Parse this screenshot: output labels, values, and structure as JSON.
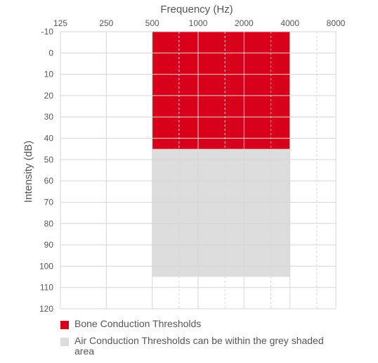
{
  "chart_data": {
    "type": "area",
    "xlabel": "Frequency (Hz)",
    "ylabel": "Intensity (dB)",
    "x_scale": "log2",
    "x_ticks": [
      125,
      250,
      500,
      1000,
      2000,
      4000,
      8000
    ],
    "y_ticks": [
      -10,
      0,
      10,
      20,
      30,
      40,
      50,
      60,
      70,
      80,
      90,
      100,
      110,
      120
    ],
    "ylim": [
      -10,
      120
    ],
    "y_inverted": true,
    "grid": true,
    "grid_minor_x_dashed": [
      750,
      1500,
      3000,
      6000
    ],
    "legend_position": "bottom",
    "series": [
      {
        "name": "Air Conduction Thresholds can be within the grey shaded area",
        "x_range": [
          500,
          4000
        ],
        "y_range": [
          -10,
          105
        ],
        "color": "#dcdcdc"
      },
      {
        "name": "Bone Conduction Thresholds",
        "x_range": [
          500,
          4000
        ],
        "y_range": [
          -10,
          45
        ],
        "color": "#d9001b"
      }
    ]
  }
}
